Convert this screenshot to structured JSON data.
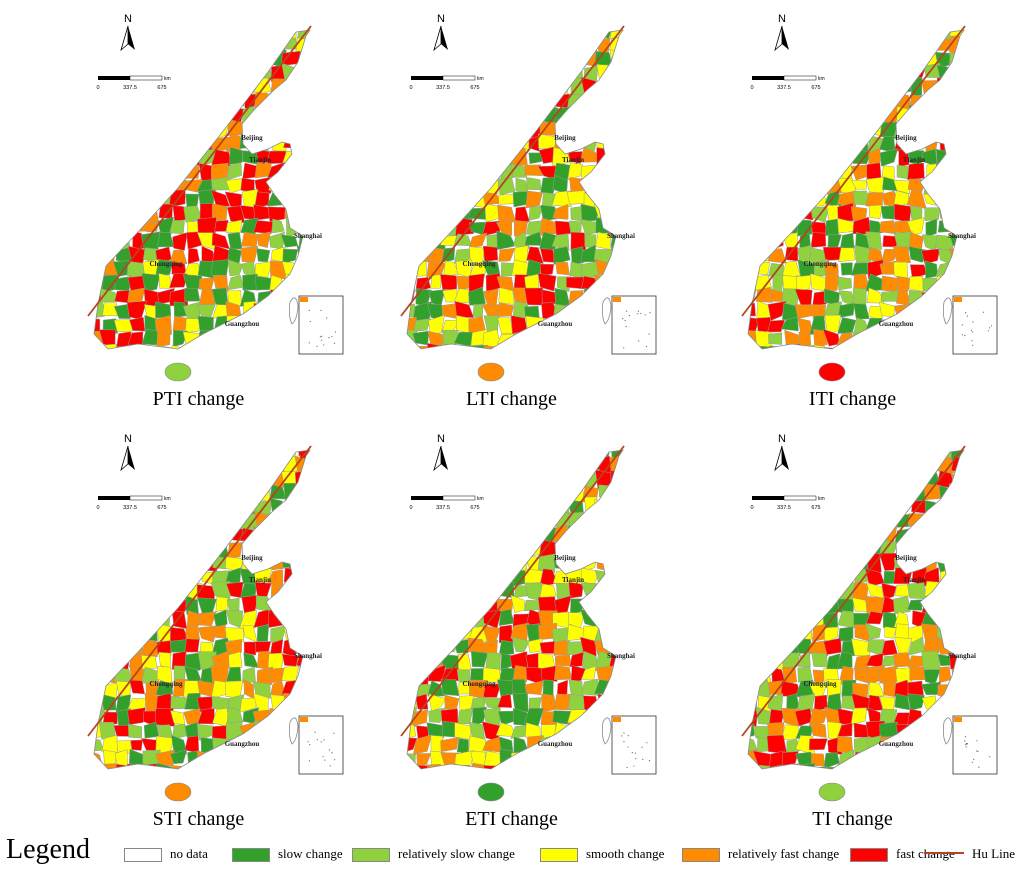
{
  "panels": [
    {
      "title": "PTI change",
      "seed": 11
    },
    {
      "title": "LTI change",
      "seed": 23
    },
    {
      "title": "ITI change",
      "seed": 37
    },
    {
      "title": "STI change",
      "seed": 41
    },
    {
      "title": "ETI change",
      "seed": 53
    },
    {
      "title": "TI change",
      "seed": 67
    }
  ],
  "north_label": "N",
  "scale": {
    "unit": "km",
    "ticks": [
      "0",
      "337.5",
      "675"
    ]
  },
  "cities": [
    "Beijing",
    "Tianjin",
    "Shanghai",
    "Chongqing",
    "Guangzhou"
  ],
  "legend": {
    "title": "Legend",
    "items": [
      {
        "label": "no data",
        "color": "#ffffff"
      },
      {
        "label": "slow change",
        "color": "#33a02c"
      },
      {
        "label": "relatively slow change",
        "color": "#8fd13f"
      },
      {
        "label": "smooth change",
        "color": "#ffff00"
      },
      {
        "label": "relatively fast change",
        "color": "#ff8c00"
      },
      {
        "label": "fast change",
        "color": "#ff0000"
      }
    ],
    "hu_line_label": "Hu Line",
    "hu_line_color": "#b5451f"
  }
}
